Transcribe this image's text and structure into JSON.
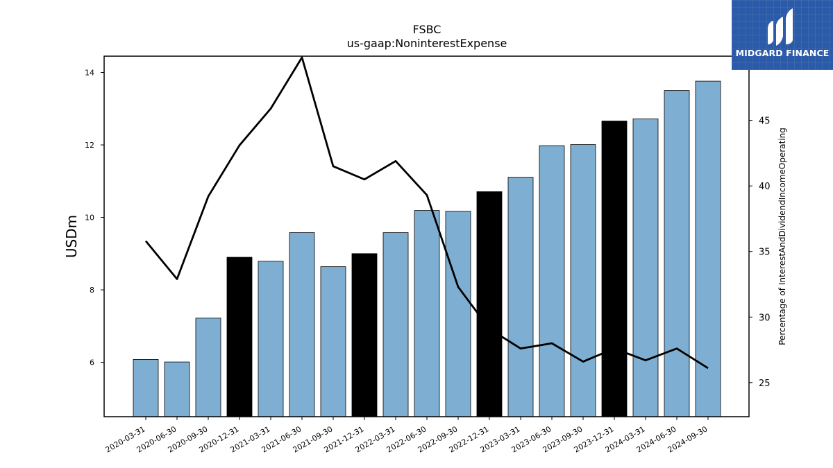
{
  "chart_data": {
    "type": "bar",
    "title": "FSBC",
    "subtitle": "us-gaap:NoninterestExpense",
    "ylabel": "USDm",
    "y2label": "Percentage of InterestAndDividendIncomeOperating",
    "categories": [
      "2020-03-31",
      "2020-06-30",
      "2020-09-30",
      "2020-12-31",
      "2021-03-31",
      "2021-06-30",
      "2021-09-30",
      "2021-12-31",
      "2022-03-31",
      "2022-06-30",
      "2022-09-30",
      "2022-12-31",
      "2023-03-31",
      "2023-06-30",
      "2023-09-30",
      "2023-12-31",
      "2024-03-31",
      "2024-06-30",
      "2024-09-30"
    ],
    "series": [
      {
        "type": "bar",
        "axis": "left",
        "values": [
          6.08,
          6.01,
          7.22,
          8.9,
          8.79,
          9.58,
          8.64,
          9.0,
          9.58,
          10.19,
          10.17,
          10.71,
          11.11,
          11.98,
          12.01,
          12.66,
          12.72,
          13.5,
          13.76
        ],
        "highlighted": [
          false,
          false,
          false,
          true,
          false,
          false,
          false,
          true,
          false,
          false,
          false,
          true,
          false,
          false,
          false,
          true,
          false,
          false,
          false
        ]
      },
      {
        "type": "line",
        "axis": "right",
        "values": [
          35.8,
          32.9,
          39.2,
          43.1,
          45.9,
          49.8,
          41.5,
          40.5,
          41.9,
          39.3,
          32.3,
          29.1,
          27.6,
          28.0,
          26.6,
          27.6,
          26.7,
          27.6,
          26.1
        ]
      }
    ],
    "ylim": [
      4.5,
      14.45
    ],
    "y2lim": [
      22.4,
      49.9
    ],
    "yticks": [
      6,
      8,
      10,
      12,
      14
    ],
    "y2ticks": [
      25,
      30,
      35,
      40,
      45
    ],
    "colors": {
      "bar": "#7eafd3",
      "bar_highlight": "#000000",
      "line": "#000000"
    },
    "grid": false,
    "legend": "none"
  },
  "logo": {
    "text": "MIDGARD FINANCE",
    "background": "#2b5aa8"
  }
}
